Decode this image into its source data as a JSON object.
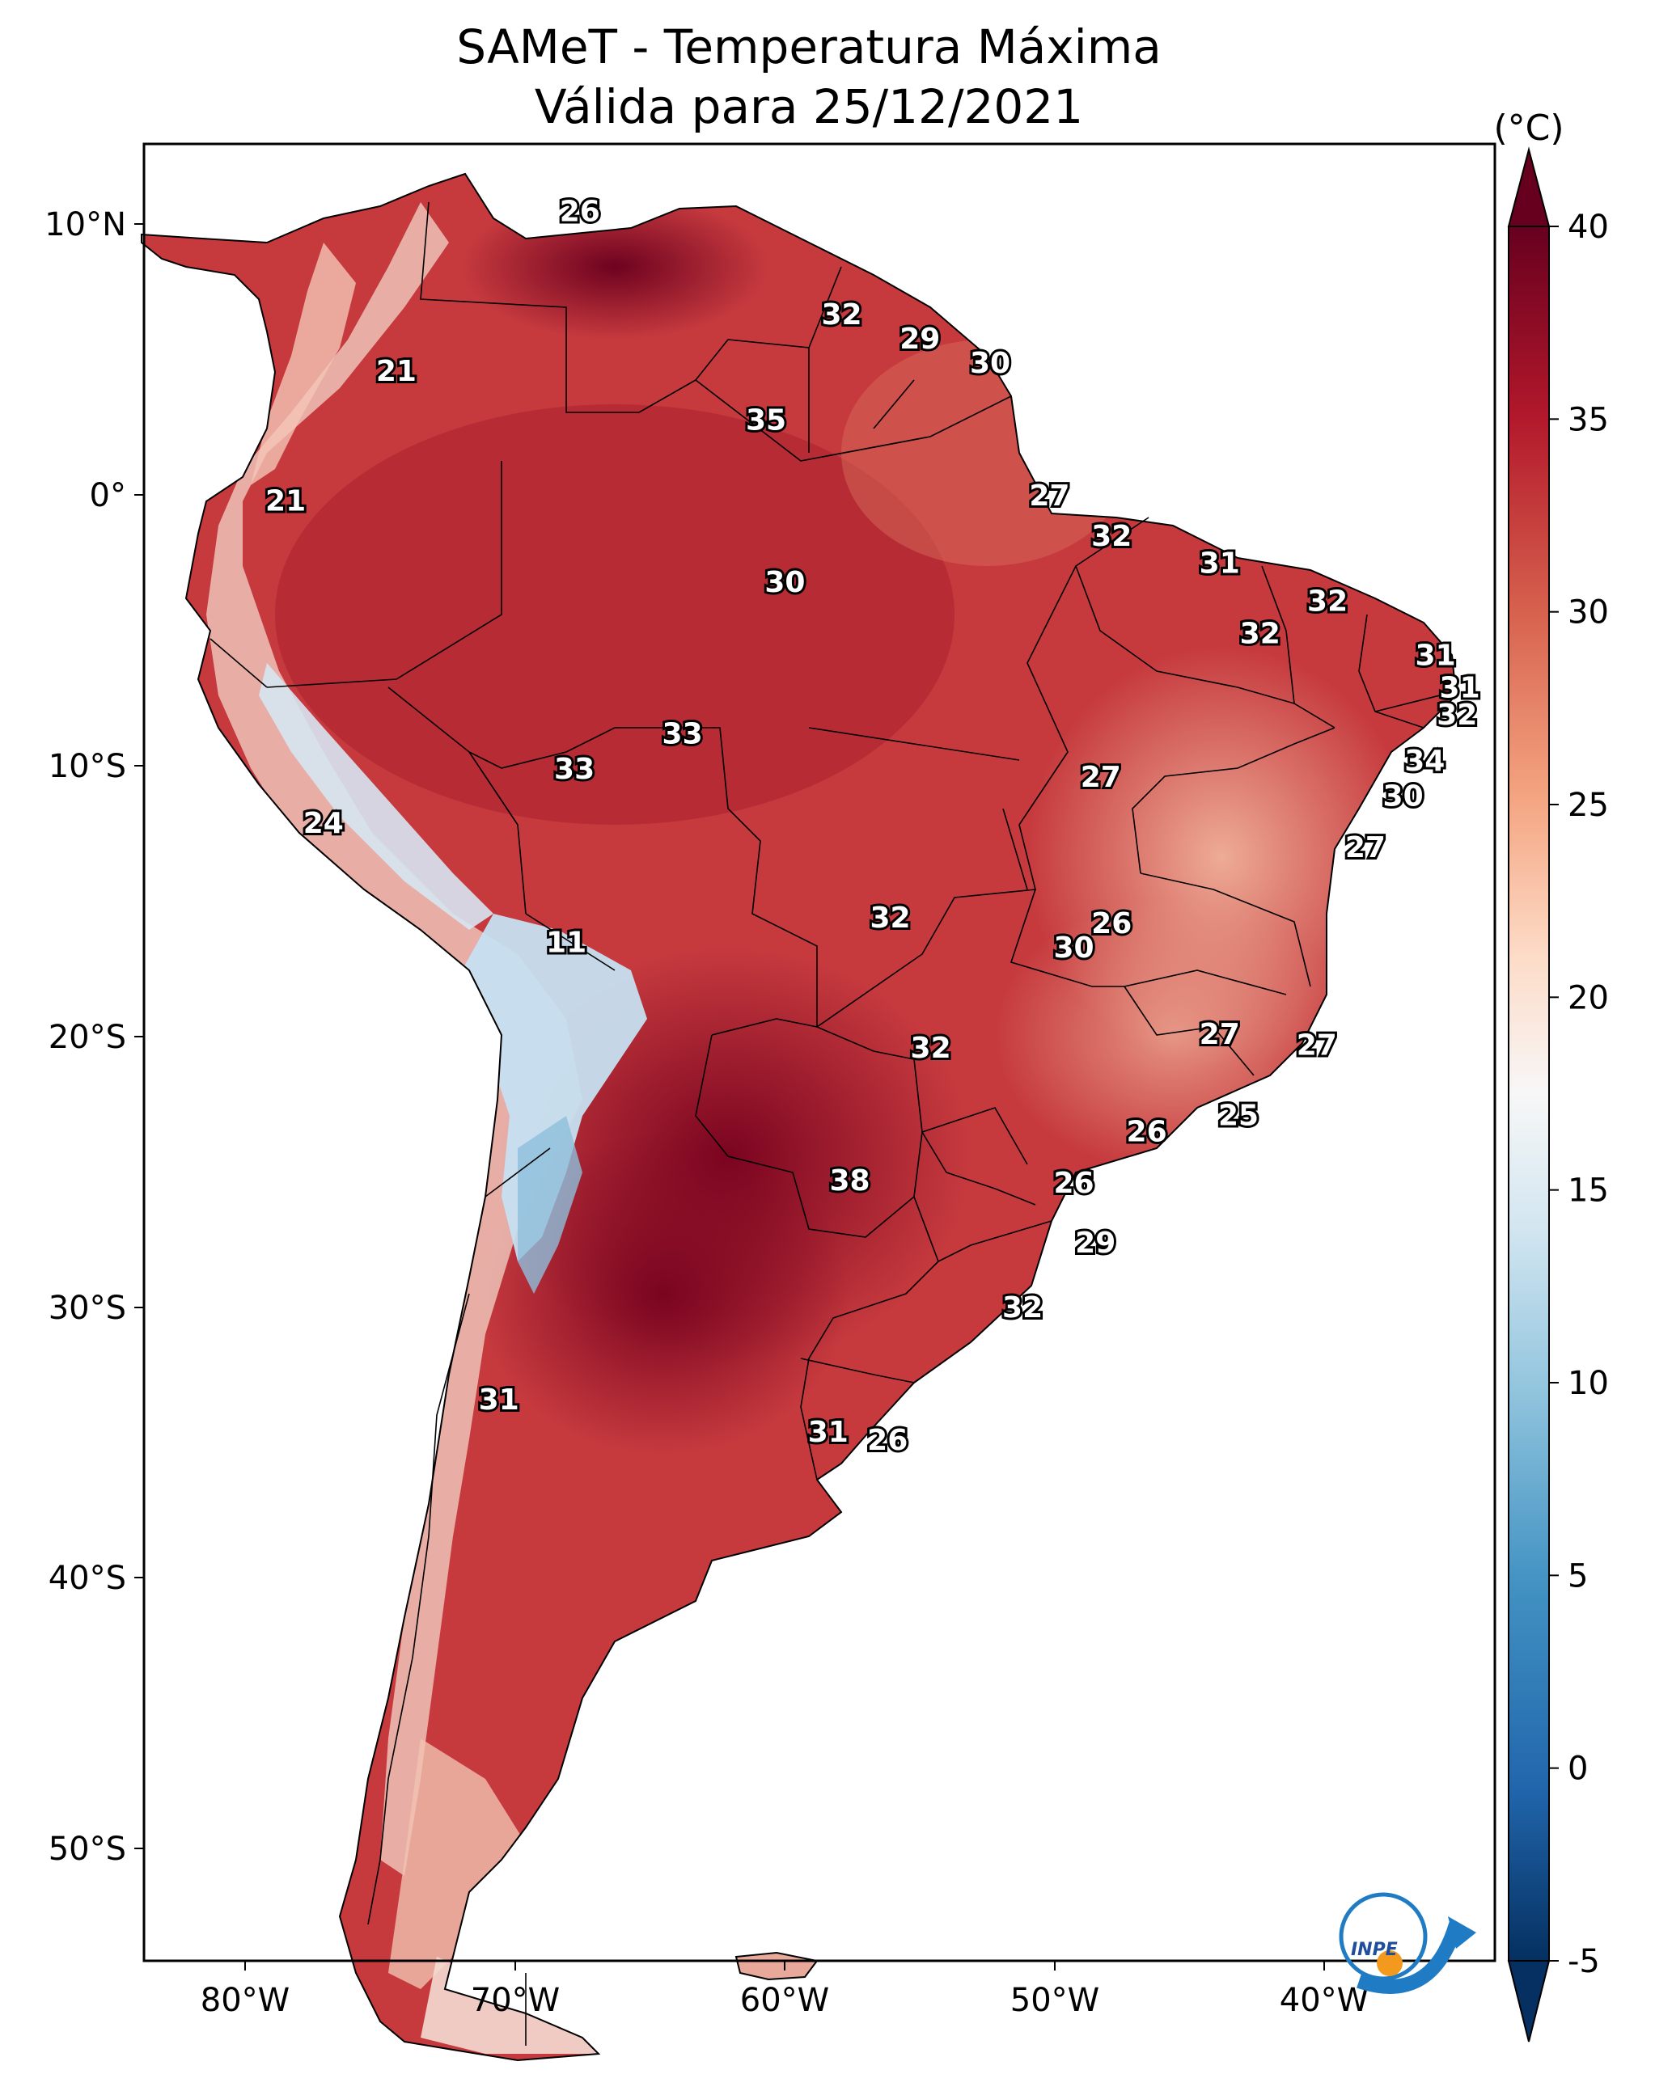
{
  "title": {
    "line1": "SAMeT - Temperatura Máxima",
    "line2": "Válida para 25/12/2021"
  },
  "map": {
    "lat_ticks": [
      "10°N",
      "0°",
      "10°S",
      "20°S",
      "30°S",
      "40°S",
      "50°S"
    ],
    "lon_ticks": [
      "80°W",
      "70°W",
      "60°W",
      "50°W",
      "40°W"
    ],
    "point_labels": [
      {
        "text": "26",
        "lon": -67.6,
        "lat": 10.5
      },
      {
        "text": "32",
        "lon": -57.9,
        "lat": 6.7
      },
      {
        "text": "29",
        "lon": -55.0,
        "lat": 5.8
      },
      {
        "text": "30",
        "lon": -52.4,
        "lat": 4.9
      },
      {
        "text": "35",
        "lon": -60.7,
        "lat": 2.8
      },
      {
        "text": "21",
        "lon": -74.4,
        "lat": 4.6
      },
      {
        "text": "21",
        "lon": -78.5,
        "lat": -0.2
      },
      {
        "text": "27",
        "lon": -50.2,
        "lat": 0.0
      },
      {
        "text": "32",
        "lon": -47.9,
        "lat": -1.5
      },
      {
        "text": "31",
        "lon": -43.9,
        "lat": -2.5
      },
      {
        "text": "32",
        "lon": -39.9,
        "lat": -3.9
      },
      {
        "text": "30",
        "lon": -60.0,
        "lat": -3.2
      },
      {
        "text": "32",
        "lon": -42.4,
        "lat": -5.1
      },
      {
        "text": "31",
        "lon": -35.9,
        "lat": -5.9
      },
      {
        "text": "31",
        "lon": -35.0,
        "lat": -7.1
      },
      {
        "text": "32",
        "lon": -35.1,
        "lat": -8.1
      },
      {
        "text": "33",
        "lon": -63.8,
        "lat": -8.8
      },
      {
        "text": "33",
        "lon": -67.8,
        "lat": -10.1
      },
      {
        "text": "34",
        "lon": -36.3,
        "lat": -9.8
      },
      {
        "text": "27",
        "lon": -48.3,
        "lat": -10.4
      },
      {
        "text": "30",
        "lon": -37.1,
        "lat": -11.1
      },
      {
        "text": "24",
        "lon": -77.1,
        "lat": -12.1
      },
      {
        "text": "27",
        "lon": -38.5,
        "lat": -13.0
      },
      {
        "text": "32",
        "lon": -56.1,
        "lat": -15.6
      },
      {
        "text": "26",
        "lon": -47.9,
        "lat": -15.8
      },
      {
        "text": "30",
        "lon": -49.3,
        "lat": -16.7
      },
      {
        "text": "11",
        "lon": -68.1,
        "lat": -16.5
      },
      {
        "text": "27",
        "lon": -43.9,
        "lat": -19.9
      },
      {
        "text": "27",
        "lon": -40.3,
        "lat": -20.3
      },
      {
        "text": "32",
        "lon": -54.6,
        "lat": -20.4
      },
      {
        "text": "25",
        "lon": -43.2,
        "lat": -22.9
      },
      {
        "text": "26",
        "lon": -46.6,
        "lat": -23.5
      },
      {
        "text": "38",
        "lon": -57.6,
        "lat": -25.3
      },
      {
        "text": "26",
        "lon": -49.3,
        "lat": -25.4
      },
      {
        "text": "29",
        "lon": -48.5,
        "lat": -27.6
      },
      {
        "text": "32",
        "lon": -51.2,
        "lat": -30.0
      },
      {
        "text": "31",
        "lon": -70.6,
        "lat": -33.4
      },
      {
        "text": "31",
        "lon": -58.4,
        "lat": -34.6
      },
      {
        "text": "26",
        "lon": -56.2,
        "lat": -34.9
      }
    ]
  },
  "colorbar": {
    "unit": "(°C)",
    "ticks": [
      "40",
      "35",
      "30",
      "25",
      "20",
      "15",
      "10",
      "5",
      "0",
      "-5"
    ],
    "min": -5,
    "max": 40,
    "colors": [
      "#053061",
      "#2166ac",
      "#4393c3",
      "#92c5de",
      "#d1e5f0",
      "#f7f7f7",
      "#fddbc7",
      "#f4a582",
      "#d6604d",
      "#b2182b",
      "#67001f"
    ]
  },
  "logo": {
    "text": "INPE"
  }
}
